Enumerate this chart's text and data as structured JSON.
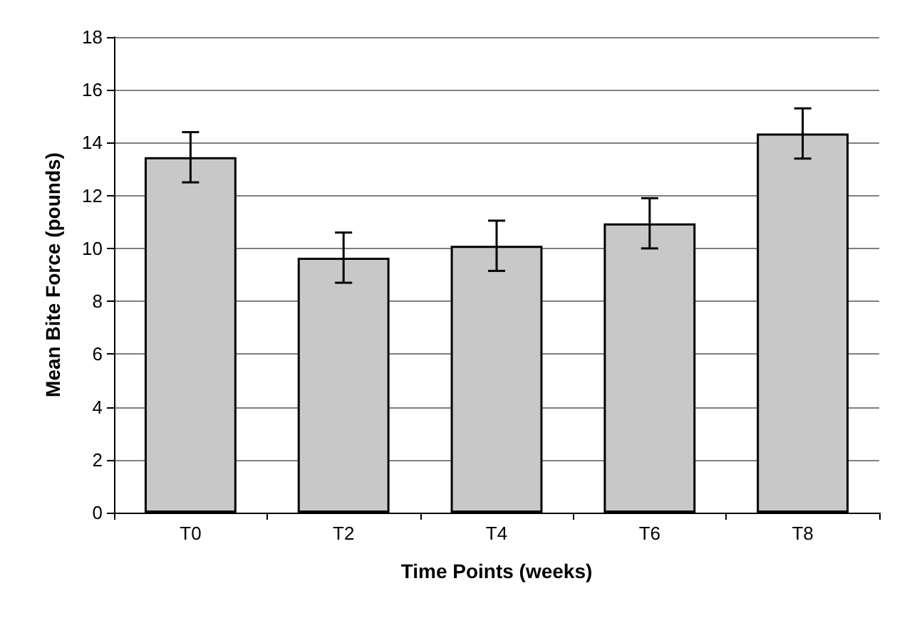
{
  "chart_data": {
    "type": "bar",
    "xlabel": "Time Points (weeks)",
    "ylabel": "Mean Bite Force (pounds)",
    "categories": [
      "T0",
      "T2",
      "T4",
      "T6",
      "T8"
    ],
    "values": [
      13.45,
      9.65,
      10.1,
      10.95,
      14.35
    ],
    "errors": [
      0.95,
      0.95,
      0.95,
      0.95,
      0.95
    ],
    "color": "#c8c8c8",
    "ylim": [
      0,
      18
    ],
    "yticks": [
      0,
      2,
      4,
      6,
      8,
      10,
      12,
      14,
      16,
      18
    ],
    "grid": "y"
  }
}
